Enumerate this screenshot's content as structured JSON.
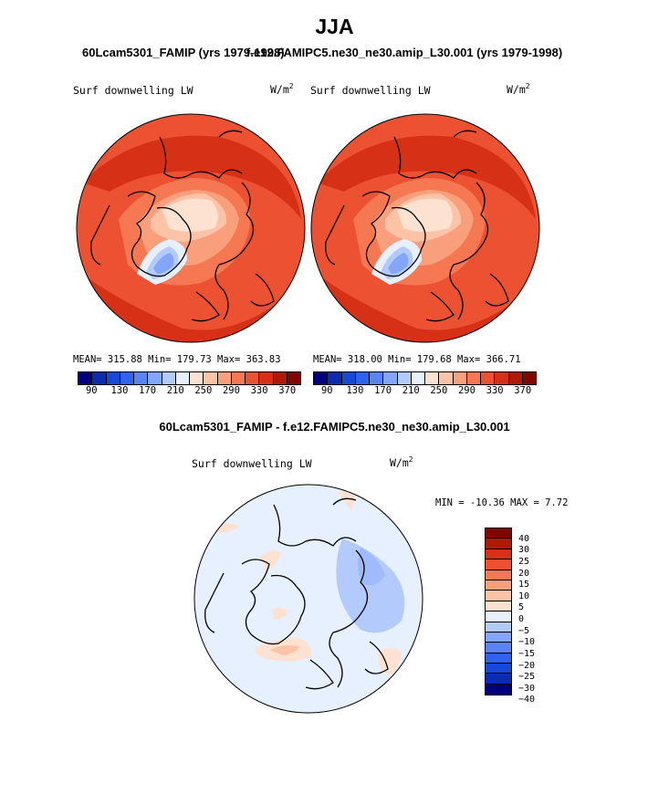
{
  "header": {
    "season": "JJA",
    "left_title": "60Lcam5301_FAMIP (yrs 1979-1998)",
    "right_title": "f.e12.FAMIPC5.ne30_ne30.amip_L30.001 (yrs 1979-1998)",
    "diff_title": "60Lcam5301_FAMIP - f.e12.FAMIPC5.ne30_ne30.amip_L30.001"
  },
  "panels": {
    "left": {
      "variable": "Surf downwelling LW",
      "units": "W/m",
      "units_exp": "2",
      "stats": "MEAN= 315.88   Min= 179.73   Max= 363.83"
    },
    "right": {
      "variable": "Surf downwelling LW",
      "units": "W/m",
      "units_exp": "2",
      "stats": "MEAN= 318.00   Min= 179.68   Max= 366.71"
    },
    "diff": {
      "variable": "Surf downwelling LW",
      "units": "W/m",
      "units_exp": "2",
      "minmax": "MIN = -10.36  MAX =   7.72"
    }
  },
  "colorbar_abs": {
    "colors": [
      "#00007f",
      "#0b2cb0",
      "#1848d8",
      "#2f62ef",
      "#5884f6",
      "#84a6fa",
      "#b3cafc",
      "#e6f0fe",
      "#fde2d2",
      "#fcc3a6",
      "#fa9f7c",
      "#f57853",
      "#ec5231",
      "#d63117",
      "#b01a05",
      "#820600"
    ],
    "labels": [
      "90",
      "130",
      "170",
      "210",
      "250",
      "290",
      "330",
      "370"
    ]
  },
  "colorbar_diff": {
    "colors": [
      "#820600",
      "#b01a05",
      "#d63117",
      "#ec5231",
      "#f57853",
      "#fa9f7c",
      "#fcc3a6",
      "#fde2d2",
      "#e6f0fe",
      "#b3cafc",
      "#84a6fa",
      "#5884f6",
      "#2f62ef",
      "#1848d8",
      "#0b2cb0",
      "#00007f"
    ],
    "labels": [
      "40",
      "30",
      "25",
      "20",
      "15",
      "10",
      "5",
      "0",
      "−5",
      "−10",
      "−15",
      "−20",
      "−25",
      "−30",
      "−40"
    ]
  }
}
